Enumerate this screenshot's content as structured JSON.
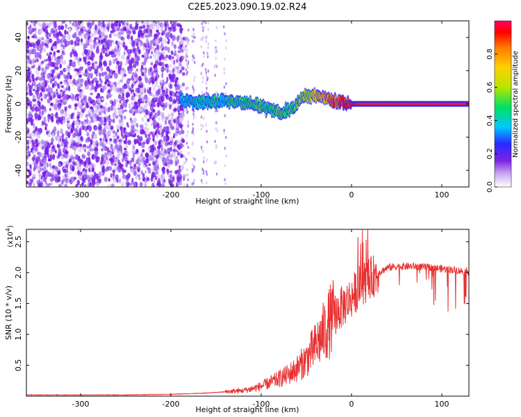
{
  "figure": {
    "title": "C2E5.2023.090.19.02.R24"
  },
  "chart_data": [
    {
      "type": "heatmap",
      "name": "spectrogram",
      "xlabel": "Height of straight line (km)",
      "ylabel": "Frequency (Hz)",
      "xlim": [
        -360,
        130
      ],
      "ylim": [
        -50,
        50
      ],
      "xticks": [
        -300,
        -200,
        -100,
        0,
        100
      ],
      "yticks": [
        -40,
        -20,
        0,
        20,
        40
      ],
      "colorbar": {
        "label": "Normalized spectral amplitude",
        "range": [
          0.0,
          1.0
        ],
        "ticks": [
          0.0,
          0.2,
          0.4,
          0.6,
          0.8
        ],
        "tick_labels": [
          "0.0",
          "0.2",
          "0.4",
          "0.6",
          "0.8"
        ],
        "colormap": [
          "#ffffff",
          "#7a22e6",
          "#2a2aff",
          "#00c8ff",
          "#00e060",
          "#b8e600",
          "#ffd000",
          "#ff7a00",
          "#ff0000",
          "#ff0060"
        ]
      },
      "noise_region": {
        "x_range": [
          -360,
          -185
        ],
        "amplitude": 0.15
      },
      "signal_track": [
        {
          "x": -190,
          "f": 2,
          "a": 0.35
        },
        {
          "x": -170,
          "f": 1,
          "a": 0.38
        },
        {
          "x": -150,
          "f": 2,
          "a": 0.4
        },
        {
          "x": -130,
          "f": 1,
          "a": 0.42
        },
        {
          "x": -110,
          "f": 1,
          "a": 0.42
        },
        {
          "x": -95,
          "f": -3,
          "a": 0.45
        },
        {
          "x": -80,
          "f": -5,
          "a": 0.45
        },
        {
          "x": -65,
          "f": -3,
          "a": 0.48
        },
        {
          "x": -55,
          "f": 4,
          "a": 0.5
        },
        {
          "x": -40,
          "f": 5,
          "a": 0.65
        },
        {
          "x": -20,
          "f": 2,
          "a": 0.8
        },
        {
          "x": 0,
          "f": 0,
          "a": 0.9
        },
        {
          "x": 130,
          "f": 0,
          "a": 0.95
        }
      ]
    },
    {
      "type": "line",
      "name": "snr",
      "xlabel": "Height of straight line (km)",
      "ylabel": "SNR (10 * v/v)",
      "y_scale_label": "(x10",
      "y_scale_exponent": "4",
      "y_scale_close": ")",
      "xlim": [
        -360,
        130
      ],
      "ylim": [
        0,
        2.7
      ],
      "xticks": [
        -300,
        -200,
        -100,
        0,
        100
      ],
      "yticks": [
        0.5,
        1.0,
        1.5,
        2.0,
        2.5
      ],
      "ytick_labels": [
        "0.5",
        "1.0",
        "1.5",
        "2.0",
        "2.5"
      ],
      "color": "#e83030",
      "series": [
        {
          "name": "SNR",
          "x": [
            -360,
            -300,
            -250,
            -200,
            -180,
            -160,
            -140,
            -120,
            -110,
            -100,
            -90,
            -80,
            -70,
            -60,
            -50,
            -40,
            -30,
            -20,
            -10,
            0,
            10,
            20,
            30,
            40,
            50,
            60,
            70,
            80,
            90,
            100,
            110,
            120,
            130
          ],
          "y": [
            0.02,
            0.02,
            0.02,
            0.03,
            0.04,
            0.05,
            0.07,
            0.09,
            0.12,
            0.16,
            0.22,
            0.28,
            0.35,
            0.45,
            0.6,
            0.8,
            1.05,
            1.3,
            1.45,
            1.6,
            1.8,
            1.9,
            2.0,
            2.08,
            2.1,
            2.1,
            2.1,
            2.09,
            2.08,
            2.06,
            2.05,
            2.03,
            2.01
          ]
        }
      ]
    }
  ]
}
